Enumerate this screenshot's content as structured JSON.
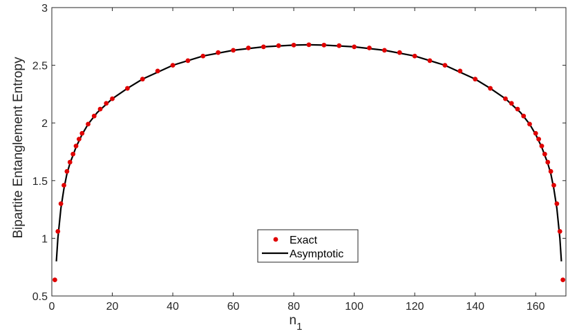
{
  "chart_data": {
    "type": "scatter",
    "title": "",
    "xlabel": "n",
    "xlabel_subscript": "1",
    "ylabel": "Bipartite Entanglement Entropy",
    "xlim": [
      0,
      170
    ],
    "ylim": [
      0.5,
      3
    ],
    "xticks": [
      0,
      20,
      40,
      60,
      80,
      100,
      120,
      140,
      160
    ],
    "yticks": [
      0.5,
      1,
      1.5,
      2,
      2.5,
      3
    ],
    "ytick_labels": [
      "0.5",
      "1",
      "1.5",
      "2",
      "2.5",
      "3"
    ],
    "grid": false,
    "legend_position": "center-bottom",
    "n_total": 170,
    "series": [
      {
        "name": "Exact",
        "kind": "markers",
        "color": "#e00000",
        "points": [
          [
            1,
            0.64
          ],
          [
            2,
            1.06
          ],
          [
            3,
            1.3
          ],
          [
            4,
            1.46
          ],
          [
            5,
            1.58
          ],
          [
            6,
            1.66
          ],
          [
            7,
            1.73
          ],
          [
            8,
            1.8
          ],
          [
            9,
            1.86
          ],
          [
            10,
            1.91
          ],
          [
            12,
            1.99
          ],
          [
            14,
            2.06
          ],
          [
            16,
            2.12
          ],
          [
            18,
            2.17
          ],
          [
            20,
            2.21
          ],
          [
            25,
            2.3
          ],
          [
            30,
            2.38
          ],
          [
            35,
            2.45
          ],
          [
            40,
            2.5
          ],
          [
            45,
            2.54
          ],
          [
            50,
            2.58
          ],
          [
            55,
            2.61
          ],
          [
            60,
            2.63
          ],
          [
            65,
            2.65
          ],
          [
            70,
            2.66
          ],
          [
            75,
            2.67
          ],
          [
            80,
            2.675
          ],
          [
            85,
            2.678
          ],
          [
            90,
            2.675
          ],
          [
            95,
            2.67
          ],
          [
            100,
            2.66
          ],
          [
            105,
            2.65
          ],
          [
            110,
            2.63
          ],
          [
            115,
            2.61
          ],
          [
            120,
            2.58
          ],
          [
            125,
            2.54
          ],
          [
            130,
            2.5
          ],
          [
            135,
            2.45
          ],
          [
            140,
            2.38
          ],
          [
            145,
            2.3
          ],
          [
            150,
            2.21
          ],
          [
            152,
            2.17
          ],
          [
            154,
            2.12
          ],
          [
            156,
            2.06
          ],
          [
            158,
            1.99
          ],
          [
            160,
            1.91
          ],
          [
            161,
            1.86
          ],
          [
            162,
            1.8
          ],
          [
            163,
            1.73
          ],
          [
            164,
            1.66
          ],
          [
            165,
            1.58
          ],
          [
            166,
            1.46
          ],
          [
            167,
            1.3
          ],
          [
            168,
            1.06
          ],
          [
            169,
            0.64
          ]
        ]
      },
      {
        "name": "Asymptotic",
        "kind": "line",
        "color": "#000000",
        "points": [
          [
            1.5,
            0.8
          ],
          [
            2,
            1.0
          ],
          [
            3,
            1.26
          ],
          [
            4,
            1.43
          ],
          [
            5,
            1.56
          ],
          [
            6,
            1.65
          ],
          [
            8,
            1.79
          ],
          [
            10,
            1.9
          ],
          [
            12,
            1.99
          ],
          [
            15,
            2.09
          ],
          [
            20,
            2.21
          ],
          [
            25,
            2.3
          ],
          [
            30,
            2.38
          ],
          [
            40,
            2.5
          ],
          [
            50,
            2.58
          ],
          [
            60,
            2.63
          ],
          [
            70,
            2.66
          ],
          [
            80,
            2.675
          ],
          [
            85,
            2.678
          ],
          [
            90,
            2.675
          ],
          [
            100,
            2.66
          ],
          [
            110,
            2.63
          ],
          [
            120,
            2.58
          ],
          [
            130,
            2.5
          ],
          [
            140,
            2.38
          ],
          [
            145,
            2.3
          ],
          [
            150,
            2.21
          ],
          [
            155,
            2.09
          ],
          [
            158,
            1.99
          ],
          [
            160,
            1.9
          ],
          [
            162,
            1.79
          ],
          [
            164,
            1.65
          ],
          [
            165,
            1.56
          ],
          [
            166,
            1.43
          ],
          [
            167,
            1.26
          ],
          [
            168,
            1.0
          ],
          [
            168.5,
            0.8
          ]
        ]
      }
    ]
  }
}
